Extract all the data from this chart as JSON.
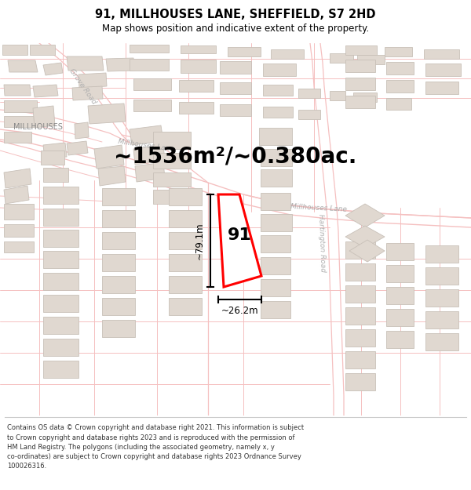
{
  "title": "91, MILLHOUSES LANE, SHEFFIELD, S7 2HD",
  "subtitle": "Map shows position and indicative extent of the property.",
  "area_text": "~1536m²/~0.380ac.",
  "height_label": "~79.1m",
  "width_label": "~26.2m",
  "number_label": "91",
  "footer_text": "Contains OS data © Crown copyright and database right 2021. This information is subject\nto Crown copyright and database rights 2023 and is reproduced with the permission of\nHM Land Registry. The polygons (including the associated geometry, namely x, y\nco-ordinates) are subject to Crown copyright and database rights 2023 Ordnance Survey\n100026316.",
  "bg_color": "#ffffff",
  "map_bg": "#ffffff",
  "road_outline_color": "#f5c0c0",
  "road_fill_color": "#fde8e8",
  "plot_color": "#ff0000",
  "building_fill": "#e0d8d0",
  "building_edge": "#c8c0b8",
  "label_road_color": "#b0b0b0",
  "label_area_color": "#555555",
  "title_color": "#000000",
  "footer_color": "#333333"
}
